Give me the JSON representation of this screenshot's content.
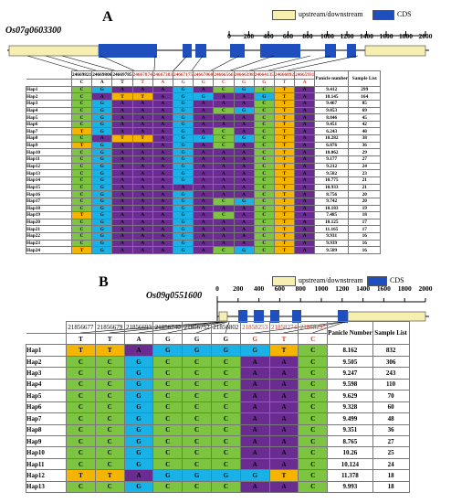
{
  "colors": {
    "A": "#6a2c91",
    "T": "#f4b400",
    "G": "#1ab2e6",
    "C": "#7dc441",
    "utr": "#f7efb0",
    "cds": "#1f4fbf",
    "highlight": "#c0392b"
  },
  "legend": {
    "utr_label": "upstream/downstream",
    "cds_label": "CDS"
  },
  "panelA": {
    "letter": "A",
    "gene": "Os07g0603300",
    "scale": [
      "0",
      "200",
      "400",
      "600",
      "800",
      "1000",
      "1200",
      "1400",
      "1600",
      "1800",
      "2000"
    ],
    "positions": [
      "24669821",
      "24669806",
      "24669785",
      "24667874",
      "24667383",
      "24667175",
      "24667068",
      "24666566",
      "24666398",
      "24664135",
      "24666092",
      "24665931"
    ],
    "highlight_cols": [
      3,
      4,
      5,
      6,
      7,
      8,
      9,
      10,
      11
    ],
    "ref_row": [
      "C",
      "A",
      "T",
      "T",
      "A",
      "G",
      "G",
      "C",
      "G",
      "G",
      "T",
      "A"
    ],
    "header_right": [
      "Panicle number",
      "Sample List"
    ],
    "rows": [
      {
        "hap": "Hap1",
        "bases": [
          "C",
          "G",
          "A",
          "A",
          "A",
          "G",
          "A",
          "C",
          "G",
          "C",
          "T",
          "A"
        ],
        "panicle": "9.412",
        "samples": "299"
      },
      {
        "hap": "Hap2",
        "bases": [
          "C",
          "A",
          "T",
          "T",
          "A",
          "G",
          "G",
          "A",
          "A",
          "G",
          "T",
          "A"
        ],
        "panicle": "10.145",
        "samples": "164"
      },
      {
        "hap": "Hap3",
        "bases": [
          "C",
          "G",
          "A",
          "A",
          "A",
          "G",
          "A",
          "A",
          "A",
          "C",
          "T",
          "A"
        ],
        "panicle": "9.467",
        "samples": "85"
      },
      {
        "hap": "Hap4",
        "bases": [
          "C",
          "G",
          "A",
          "A",
          "A",
          "G",
          "A",
          "C",
          "G",
          "C",
          "T",
          "A"
        ],
        "panicle": "9.053",
        "samples": "69"
      },
      {
        "hap": "Hap5",
        "bases": [
          "C",
          "G",
          "A",
          "A",
          "A",
          "G",
          "A",
          "A",
          "A",
          "C",
          "T",
          "A"
        ],
        "panicle": "8.846",
        "samples": "45"
      },
      {
        "hap": "Hap6",
        "bases": [
          "C",
          "G",
          "A",
          "A",
          "A",
          "G",
          "A",
          "A",
          "A",
          "C",
          "T",
          "A"
        ],
        "panicle": "9.451",
        "samples": "42"
      },
      {
        "hap": "Hap7",
        "bases": [
          "T",
          "G",
          "A",
          "A",
          "A",
          "G",
          "A",
          "C",
          "A",
          "C",
          "T",
          "A"
        ],
        "panicle": "6.243",
        "samples": "40"
      },
      {
        "hap": "Hap8",
        "bases": [
          "C",
          "A",
          "T",
          "T",
          "A",
          "G",
          "G",
          "C",
          "G",
          "C",
          "T",
          "A"
        ],
        "panicle": "10.282",
        "samples": "38"
      },
      {
        "hap": "Hap9",
        "bases": [
          "T",
          "G",
          "A",
          "A",
          "A",
          "G",
          "A",
          "C",
          "A",
          "C",
          "T",
          "A"
        ],
        "panicle": "6.876",
        "samples": "36"
      },
      {
        "hap": "Hap10",
        "bases": [
          "C",
          "G",
          "A",
          "A",
          "A",
          "G",
          "A",
          "A",
          "A",
          "C",
          "T",
          "A"
        ],
        "panicle": "10.062",
        "samples": "29"
      },
      {
        "hap": "Hap11",
        "bases": [
          "C",
          "G",
          "A",
          "A",
          "A",
          "G",
          "A",
          "A",
          "A",
          "C",
          "T",
          "A"
        ],
        "panicle": "9.177",
        "samples": "27"
      },
      {
        "hap": "Hap12",
        "bases": [
          "C",
          "G",
          "A",
          "A",
          "A",
          "G",
          "A",
          "A",
          "A",
          "C",
          "T",
          "A"
        ],
        "panicle": "9.212",
        "samples": "24"
      },
      {
        "hap": "Hap13",
        "bases": [
          "C",
          "G",
          "A",
          "A",
          "A",
          "G",
          "A",
          "A",
          "A",
          "C",
          "T",
          "A"
        ],
        "panicle": "9.582",
        "samples": "23"
      },
      {
        "hap": "Hap14",
        "bases": [
          "C",
          "G",
          "A",
          "A",
          "A",
          "G",
          "A",
          "A",
          "A",
          "C",
          "T",
          "A"
        ],
        "panicle": "10.775",
        "samples": "21"
      },
      {
        "hap": "Hap15",
        "bases": [
          "C",
          "G",
          "A",
          "A",
          "A",
          "A",
          "A",
          "A",
          "A",
          "C",
          "T",
          "A"
        ],
        "panicle": "10.933",
        "samples": "21"
      },
      {
        "hap": "Hap16",
        "bases": [
          "C",
          "G",
          "A",
          "A",
          "A",
          "G",
          "A",
          "A",
          "A",
          "C",
          "T",
          "A"
        ],
        "panicle": "8.756",
        "samples": "20"
      },
      {
        "hap": "Hap17",
        "bases": [
          "C",
          "G",
          "A",
          "A",
          "A",
          "G",
          "A",
          "C",
          "G",
          "C",
          "T",
          "A"
        ],
        "panicle": "9.742",
        "samples": "20"
      },
      {
        "hap": "Hap18",
        "bases": [
          "C",
          "G",
          "A",
          "A",
          "A",
          "G",
          "A",
          "A",
          "A",
          "C",
          "T",
          "A"
        ],
        "panicle": "10.183",
        "samples": "19"
      },
      {
        "hap": "Hap19",
        "bases": [
          "T",
          "G",
          "A",
          "A",
          "A",
          "G",
          "A",
          "C",
          "A",
          "C",
          "T",
          "A"
        ],
        "panicle": "7.485",
        "samples": "18"
      },
      {
        "hap": "Hap20",
        "bases": [
          "C",
          "G",
          "A",
          "A",
          "A",
          "G",
          "A",
          "A",
          "A",
          "C",
          "T",
          "A"
        ],
        "panicle": "10.125",
        "samples": "17"
      },
      {
        "hap": "Hap21",
        "bases": [
          "C",
          "G",
          "A",
          "A",
          "A",
          "G",
          "A",
          "A",
          "A",
          "C",
          "T",
          "A"
        ],
        "panicle": "11.165",
        "samples": "17"
      },
      {
        "hap": "Hap22",
        "bases": [
          "C",
          "G",
          "A",
          "A",
          "A",
          "G",
          "A",
          "A",
          "A",
          "C",
          "T",
          "A"
        ],
        "panicle": "9.931",
        "samples": "16"
      },
      {
        "hap": "Hap23",
        "bases": [
          "C",
          "G",
          "A",
          "A",
          "A",
          "G",
          "A",
          "A",
          "A",
          "C",
          "T",
          "A"
        ],
        "panicle": "9.939",
        "samples": "16"
      },
      {
        "hap": "Hap24",
        "bases": [
          "T",
          "G",
          "A",
          "A",
          "A",
          "G",
          "A",
          "C",
          "G",
          "C",
          "T",
          "A"
        ],
        "panicle": "9.589",
        "samples": "16"
      }
    ]
  },
  "panelB": {
    "letter": "B",
    "gene": "Os09g0551600",
    "scale": [
      "0",
      "200",
      "400",
      "600",
      "800",
      "1000",
      "1200",
      "1400",
      "1600",
      "1800",
      "2000"
    ],
    "positions": [
      "21856677",
      "21856679",
      "21856693",
      "21856740",
      "21856752",
      "21856802",
      "21858253",
      "21858274",
      "21858295"
    ],
    "highlight_cols": [
      6,
      7,
      8
    ],
    "ref_row": [
      "T",
      "T",
      "A",
      "G",
      "G",
      "G",
      "G",
      "T",
      "C"
    ],
    "header_right": [
      "Panicle Number",
      "Sample List"
    ],
    "rows": [
      {
        "hap": "Hap1",
        "bases": [
          "T",
          "T",
          "A",
          "G",
          "G",
          "G",
          "G",
          "T",
          "C"
        ],
        "panicle": "8.162",
        "samples": "832"
      },
      {
        "hap": "Hap2",
        "bases": [
          "C",
          "C",
          "G",
          "C",
          "C",
          "C",
          "A",
          "A",
          "C"
        ],
        "panicle": "9.505",
        "samples": "306"
      },
      {
        "hap": "Hap3",
        "bases": [
          "C",
          "C",
          "G",
          "C",
          "C",
          "C",
          "A",
          "A",
          "C"
        ],
        "panicle": "9.247",
        "samples": "243"
      },
      {
        "hap": "Hap4",
        "bases": [
          "C",
          "C",
          "G",
          "C",
          "C",
          "C",
          "A",
          "A",
          "C"
        ],
        "panicle": "9.598",
        "samples": "110"
      },
      {
        "hap": "Hap5",
        "bases": [
          "C",
          "C",
          "G",
          "C",
          "C",
          "C",
          "A",
          "A",
          "C"
        ],
        "panicle": "9.629",
        "samples": "70"
      },
      {
        "hap": "Hap6",
        "bases": [
          "C",
          "C",
          "G",
          "C",
          "C",
          "C",
          "A",
          "A",
          "C"
        ],
        "panicle": "9.328",
        "samples": "60"
      },
      {
        "hap": "Hap7",
        "bases": [
          "C",
          "C",
          "G",
          "C",
          "C",
          "C",
          "A",
          "A",
          "C"
        ],
        "panicle": "9.499",
        "samples": "48"
      },
      {
        "hap": "Hap8",
        "bases": [
          "C",
          "C",
          "G",
          "C",
          "C",
          "C",
          "A",
          "A",
          "C"
        ],
        "panicle": "9.351",
        "samples": "36"
      },
      {
        "hap": "Hap9",
        "bases": [
          "C",
          "C",
          "G",
          "C",
          "C",
          "C",
          "A",
          "A",
          "C"
        ],
        "panicle": "8.765",
        "samples": "27"
      },
      {
        "hap": "Hap10",
        "bases": [
          "C",
          "C",
          "G",
          "C",
          "C",
          "C",
          "A",
          "A",
          "C"
        ],
        "panicle": "10.26",
        "samples": "25"
      },
      {
        "hap": "Hap11",
        "bases": [
          "C",
          "C",
          "G",
          "C",
          "C",
          "C",
          "A",
          "A",
          "C"
        ],
        "panicle": "10.124",
        "samples": "24"
      },
      {
        "hap": "Hap12",
        "bases": [
          "T",
          "T",
          "A",
          "G",
          "G",
          "G",
          "G",
          "T",
          "C"
        ],
        "panicle": "11.378",
        "samples": "18"
      },
      {
        "hap": "Hap13",
        "bases": [
          "C",
          "C",
          "G",
          "C",
          "C",
          "C",
          "A",
          "A",
          "C"
        ],
        "panicle": "9.993",
        "samples": "18"
      }
    ]
  }
}
